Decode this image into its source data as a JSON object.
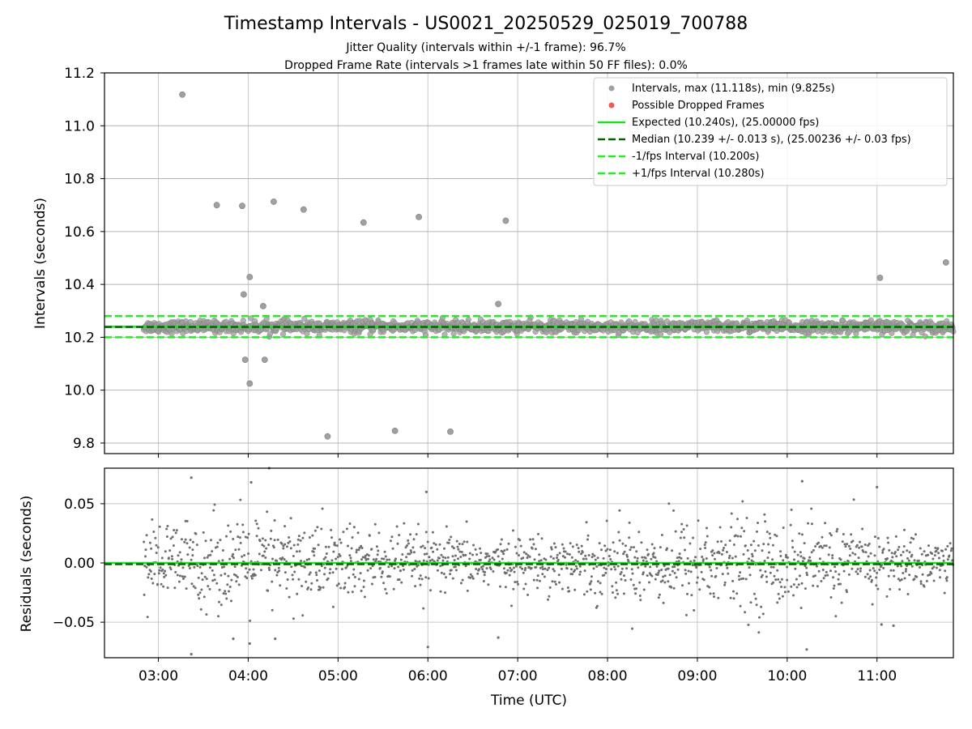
{
  "chart_data": [
    {
      "type": "scatter",
      "title": "Timestamp Intervals - US0021_20250529_025019_700788",
      "subtitle_lines": [
        "Jitter Quality (intervals within +/-1 frame): 96.7%",
        "Dropped Frame Rate (intervals >1 frames late within 50 FF files): 0.0%"
      ],
      "ylabel": "Intervals (seconds)",
      "ylim": [
        9.76,
        11.2
      ],
      "xlim": [
        "02:24",
        "11:51"
      ],
      "yticks": [
        {
          "value": 9.8,
          "label": "9.8"
        },
        {
          "value": 10.0,
          "label": "10.0"
        },
        {
          "value": 10.2,
          "label": "10.2"
        },
        {
          "value": 10.4,
          "label": "10.4"
        },
        {
          "value": 10.6,
          "label": "10.6"
        },
        {
          "value": 10.8,
          "label": "10.8"
        },
        {
          "value": 11.0,
          "label": "11.0"
        },
        {
          "value": 11.2,
          "label": "11.2"
        }
      ],
      "grid": true,
      "legend_position": "upper right",
      "legend": [
        {
          "label": "Intervals, max (11.118s), min (9.825s)",
          "marker": "circle",
          "color": "#a0a0a0"
        },
        {
          "label": "Possible Dropped Frames",
          "marker": "circle",
          "color": "#f05a5a"
        },
        {
          "label": "Expected (10.240s), (25.00000 fps)",
          "marker": "solid-line",
          "color": "#22dd22"
        },
        {
          "label": "Median (10.239 +/- 0.013 s), (25.00236 +/- 0.03 fps)",
          "marker": "dashed-line",
          "color": "#006400"
        },
        {
          "label": "-1/fps Interval (10.200s)",
          "marker": "dashed-line",
          "color": "#22ee22"
        },
        {
          "label": "+1/fps Interval (10.280s)",
          "marker": "dashed-line",
          "color": "#22ee22"
        }
      ],
      "reference_lines": [
        {
          "name": "expected",
          "y": 10.24,
          "style": "solid",
          "color": "#22dd22"
        },
        {
          "name": "median",
          "y": 10.239,
          "style": "dashed",
          "color": "#006400"
        },
        {
          "name": "minus_one_frame",
          "y": 10.2,
          "style": "dashed",
          "color": "#22ee22"
        },
        {
          "name": "plus_one_frame",
          "y": 10.28,
          "style": "dashed",
          "color": "#22ee22"
        }
      ],
      "dense_band": {
        "x_range": [
          "02:50",
          "11:51"
        ],
        "center": 10.24,
        "spread": 0.02,
        "estimated_count": 1500
      },
      "outliers": [
        {
          "x": "03:16",
          "y": 11.118
        },
        {
          "x": "03:39",
          "y": 10.7
        },
        {
          "x": "03:56",
          "y": 10.697
        },
        {
          "x": "04:17",
          "y": 10.713
        },
        {
          "x": "04:37",
          "y": 10.683
        },
        {
          "x": "05:17",
          "y": 10.634
        },
        {
          "x": "05:54",
          "y": 10.655
        },
        {
          "x": "06:52",
          "y": 10.641
        },
        {
          "x": "11:46",
          "y": 10.483
        },
        {
          "x": "04:01",
          "y": 10.428
        },
        {
          "x": "11:02",
          "y": 10.425
        },
        {
          "x": "03:57",
          "y": 10.362
        },
        {
          "x": "04:10",
          "y": 10.318
        },
        {
          "x": "06:47",
          "y": 10.326
        },
        {
          "x": "03:58",
          "y": 10.115
        },
        {
          "x": "04:11",
          "y": 10.115
        },
        {
          "x": "04:01",
          "y": 10.025
        },
        {
          "x": "04:53",
          "y": 9.825
        },
        {
          "x": "05:38",
          "y": 9.846
        },
        {
          "x": "06:15",
          "y": 9.843
        }
      ]
    },
    {
      "type": "scatter",
      "ylabel": "Residuals (seconds)",
      "xlabel": "Time (UTC)",
      "ylim": [
        -0.08,
        0.08
      ],
      "xlim": [
        "02:24",
        "11:51"
      ],
      "yticks": [
        {
          "value": -0.05,
          "label": "−0.05"
        },
        {
          "value": 0.0,
          "label": "0.00"
        },
        {
          "value": 0.05,
          "label": "0.05"
        }
      ],
      "xticks": [
        "03:00",
        "04:00",
        "05:00",
        "06:00",
        "07:00",
        "08:00",
        "09:00",
        "10:00",
        "11:00"
      ],
      "grid": true,
      "reference_lines": [
        {
          "name": "zero",
          "y": 0.0,
          "style": "solid",
          "color": "#22dd22"
        },
        {
          "name": "median_residual",
          "y": -0.001,
          "style": "dashed",
          "color": "#006400"
        }
      ],
      "residual_cloud": {
        "x_range": [
          "02:50",
          "11:51"
        ],
        "center": 0.0,
        "spread": 0.018,
        "estimated_count": 1500
      },
      "outliers": [
        {
          "x": "03:22",
          "y": 0.072
        },
        {
          "x": "04:14",
          "y": 0.08
        },
        {
          "x": "04:02",
          "y": 0.068
        },
        {
          "x": "10:10",
          "y": 0.069
        },
        {
          "x": "11:00",
          "y": 0.064
        },
        {
          "x": "05:59",
          "y": 0.06
        },
        {
          "x": "03:22",
          "y": -0.077
        },
        {
          "x": "10:13",
          "y": -0.073
        },
        {
          "x": "06:00",
          "y": -0.071
        },
        {
          "x": "04:01",
          "y": -0.068
        },
        {
          "x": "06:47",
          "y": -0.063
        },
        {
          "x": "03:50",
          "y": -0.064
        },
        {
          "x": "04:18",
          "y": -0.064
        },
        {
          "x": "11:03",
          "y": -0.052
        },
        {
          "x": "11:11",
          "y": -0.053
        }
      ]
    }
  ]
}
